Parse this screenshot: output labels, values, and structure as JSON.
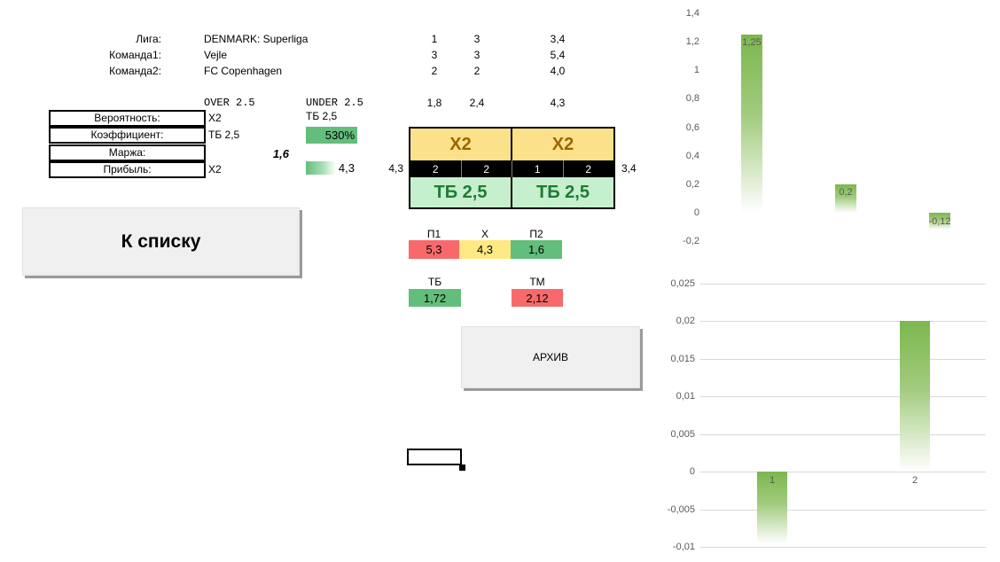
{
  "info": {
    "rows": [
      {
        "label": "Лига:",
        "value": "DENMARK: Superliga",
        "c1": "1",
        "c2": "3",
        "c3": "3,4"
      },
      {
        "label": "Команда1:",
        "value": "Vejle",
        "c1": "3",
        "c2": "3",
        "c3": "5,4"
      },
      {
        "label": "Команда2:",
        "value": "FC Copenhagen",
        "c1": "2",
        "c2": "2",
        "c3": "4,0"
      }
    ],
    "over_label": "OVER 2.5",
    "under_label": "UNDER 2.5",
    "odds": {
      "c1": "1,8",
      "c2": "2,4",
      "c3": "4,3"
    }
  },
  "stats": {
    "rows": [
      {
        "label": "Вероятность:",
        "value": "Х2"
      },
      {
        "label": "Коэффициент:",
        "value": "ТБ 2,5"
      },
      {
        "label": "Маржа:",
        "value": ""
      },
      {
        "label": "Прибыль:",
        "value": "Х2"
      }
    ],
    "tb_header": "ТБ 2,5",
    "tb_percent": "530%",
    "margin": "1,6",
    "databar_value": "4,3"
  },
  "buttons": {
    "to_list": "К списку",
    "archive": "АРХИВ"
  },
  "bet_grid": {
    "left_value": "4,3",
    "right_value": "3,4",
    "top_left": "Х2",
    "top_right": "Х2",
    "scores": [
      "2",
      "2",
      "1",
      "2"
    ],
    "bottom_left": "ТБ 2,5",
    "bottom_right": "ТБ 2,5"
  },
  "outcomes": {
    "headers": [
      "П1",
      "Х",
      "П2"
    ],
    "values": [
      "5,3",
      "4,3",
      "1,6"
    ]
  },
  "totals": {
    "headers": [
      "ТБ",
      "ТМ"
    ],
    "values": [
      "1,72",
      "2,12"
    ]
  },
  "colors": {
    "scale_green": "#63BE7B",
    "scale_red": "#F8696B",
    "scale_yellow": "#FFE984",
    "header_yellow_bg": "#FBE18A",
    "header_yellow_text": "#9C6500",
    "good_green_bg": "#C6EFCE",
    "good_green_text": "#1E7B34",
    "chart_bar_green": "#7CB74E",
    "chart_label_gray": "#595959",
    "gridline_gray": "#D9D9D9"
  },
  "chart_data": [
    {
      "type": "bar",
      "values": [
        1.25,
        0.2,
        -0.12
      ],
      "value_labels": [
        "1,25",
        "0,2",
        "-0,12"
      ],
      "categories": [],
      "show_categories": false,
      "ylim": [
        -0.2,
        1.4
      ],
      "ytick_values": [
        1.4,
        1.2,
        1.0,
        0.8,
        0.6,
        0.4,
        0.2,
        0,
        -0.2
      ],
      "ytick_labels": [
        "1,4",
        "1,2",
        "1",
        "0,8",
        "0,6",
        "0,4",
        "0,2",
        "0",
        "-0,2"
      ],
      "grid": false,
      "title": "",
      "xlabel": "",
      "ylabel": ""
    },
    {
      "type": "bar",
      "values": [
        -0.0095,
        0.02
      ],
      "value_labels": null,
      "categories": [
        "1",
        "2"
      ],
      "show_categories": true,
      "ylim": [
        -0.01,
        0.025
      ],
      "ytick_values": [
        0.025,
        0.02,
        0.015,
        0.01,
        0.005,
        0,
        -0.005,
        -0.01
      ],
      "ytick_labels": [
        "0,025",
        "0,02",
        "0,015",
        "0,01",
        "0,005",
        "0",
        "-0,005",
        "-0,01"
      ],
      "grid": true,
      "title": "",
      "xlabel": "",
      "ylabel": ""
    }
  ]
}
